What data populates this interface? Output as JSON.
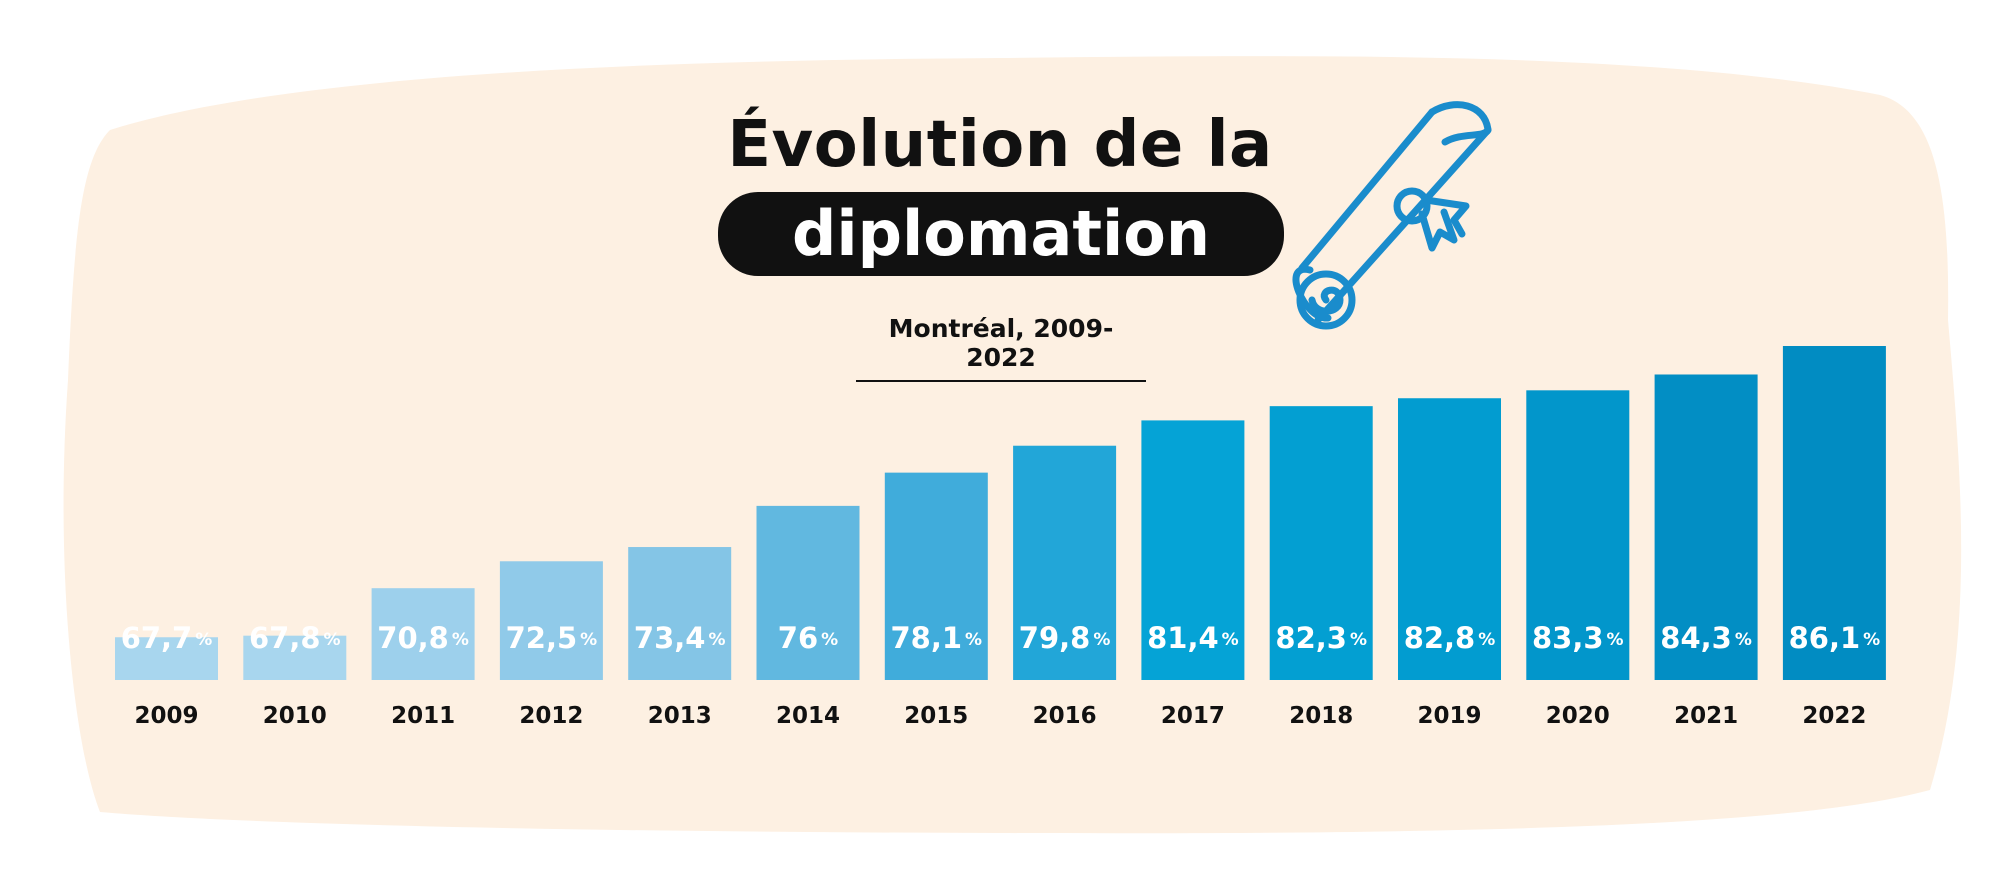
{
  "title": {
    "line1": "Évolution de la",
    "line2": "diplomation",
    "subtitle": "Montréal, 2009-2022"
  },
  "colors": {
    "background_blob": "#fdf0e2",
    "text": "#111111",
    "icon": "#1a8ccc",
    "bar_label": "#ffffff"
  },
  "icons": {
    "decoration": "diploma-scroll-icon"
  },
  "chart_data": {
    "type": "bar",
    "categories": [
      "2009",
      "2010",
      "2011",
      "2012",
      "2013",
      "2014",
      "2015",
      "2016",
      "2017",
      "2018",
      "2019",
      "2020",
      "2021",
      "2022"
    ],
    "values": [
      67.7,
      67.8,
      70.8,
      72.5,
      73.4,
      76,
      78.1,
      79.8,
      81.4,
      82.3,
      82.8,
      83.3,
      84.3,
      86.1
    ],
    "value_labels": [
      "67,7",
      "67,8",
      "70,8",
      "72,5",
      "73,4",
      "76",
      "78,1",
      "79,8",
      "81,4",
      "82,3",
      "82,8",
      "83,3",
      "84,3",
      "86,1"
    ],
    "unit": "%",
    "bar_colors": [
      "#a8d6ee",
      "#a8d6ee",
      "#9dd0ec",
      "#90cae9",
      "#84c5e6",
      "#61b8e0",
      "#40acdb",
      "#22a6d8",
      "#05a3d6",
      "#039fd2",
      "#029cd0",
      "#0296cb",
      "#028ec4",
      "#018cc2"
    ],
    "title": "Évolution de la diplomation",
    "subtitle": "Montréal, 2009-2022",
    "xlabel": "",
    "ylabel": "",
    "ylim": [
      65,
      86.1
    ],
    "grid": false,
    "legend": "none"
  }
}
